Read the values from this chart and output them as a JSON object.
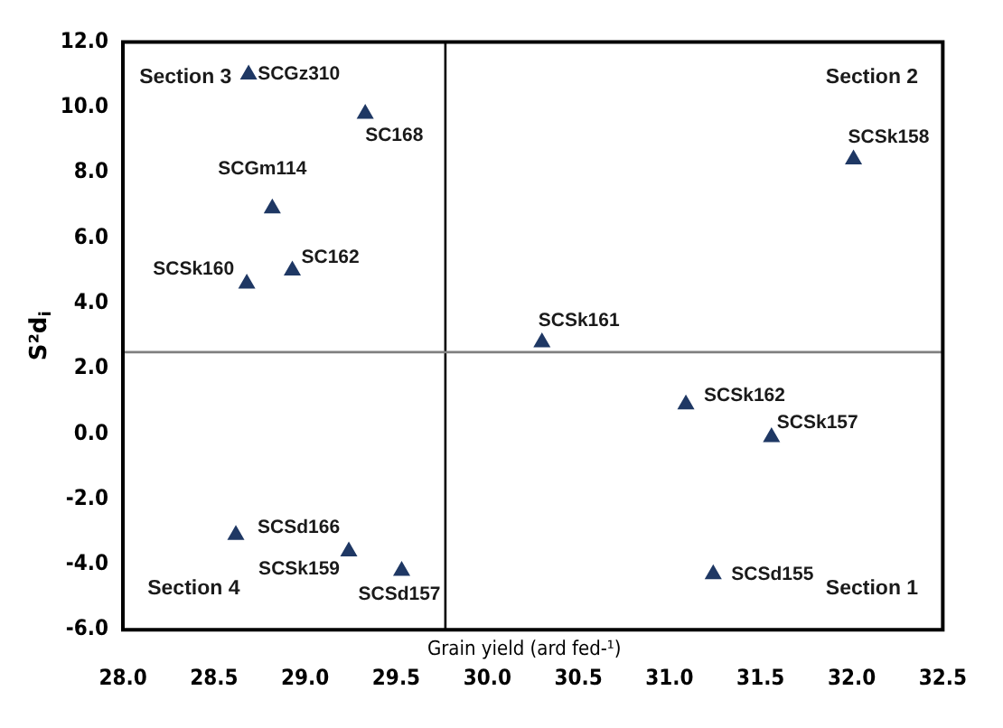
{
  "chart_data": {
    "type": "scatter",
    "xlabel": "Grain yield (ard fed-¹)",
    "ylabel": "S²d$_{i}$",
    "x": [
      28.69,
      29.33,
      28.82,
      28.93,
      28.68,
      32.01,
      30.3,
      31.09,
      31.56,
      31.24,
      28.62,
      29.24,
      29.53
    ],
    "series": [
      {
        "color": "#1f3864",
        "values": [
          11.0,
          9.8,
          6.9,
          5.0,
          4.6,
          8.4,
          2.8,
          0.9,
          -0.1,
          -4.3,
          -3.1,
          -3.6,
          -4.2
        ]
      }
    ],
    "marker": "triangle",
    "legend": false,
    "grid": false,
    "xlim": [
      28,
      32.5
    ],
    "ylim": [
      -6,
      12
    ],
    "xticks": [
      {
        "value": 28,
        "label": "28.0"
      },
      {
        "value": 28.5,
        "label": "28.5"
      },
      {
        "value": 29,
        "label": "29.0"
      },
      {
        "value": 29.5,
        "label": "29.5"
      },
      {
        "value": 30,
        "label": "30.0"
      },
      {
        "value": 30.5,
        "label": "30.5"
      },
      {
        "value": 31,
        "label": "31.0"
      },
      {
        "value": 31.5,
        "label": "31.5"
      },
      {
        "value": 32,
        "label": "32.0"
      },
      {
        "value": 32.5,
        "label": "32.5"
      }
    ],
    "yticks": [
      {
        "value": -6,
        "label": "-6.0"
      },
      {
        "value": -4,
        "label": "-4.0"
      },
      {
        "value": -2,
        "label": "-2.0"
      },
      {
        "value": 0,
        "label": "0.0"
      },
      {
        "value": 2,
        "label": "2.0"
      },
      {
        "value": 4,
        "label": "4.0"
      },
      {
        "value": 6,
        "label": "6.0"
      },
      {
        "value": 8,
        "label": "8.0"
      },
      {
        "value": 10,
        "label": "10.0"
      },
      {
        "value": 12,
        "label": "12.0"
      }
    ],
    "ref_lines": [
      {
        "axis": "x",
        "value": 29.77,
        "color": "#000000"
      },
      {
        "axis": "y",
        "value": 2.5,
        "color": "#808080"
      }
    ],
    "annotations": [
      {
        "text": "SCGz310",
        "x": 28.69,
        "y": 11.0
      },
      {
        "text": "SC168",
        "x": 29.33,
        "y": 9.8
      },
      {
        "text": "SCGm114",
        "x": 28.82,
        "y": 6.9
      },
      {
        "text": "SC162",
        "x": 28.93,
        "y": 5.0
      },
      {
        "text": "SCSk160",
        "x": 28.68,
        "y": 4.6
      },
      {
        "text": "SCSk158",
        "x": 32.01,
        "y": 8.4
      },
      {
        "text": "SCSk161",
        "x": 30.3,
        "y": 2.8
      },
      {
        "text": "SCSk162",
        "x": 31.09,
        "y": 0.9
      },
      {
        "text": "SCSk157",
        "x": 31.56,
        "y": -0.1
      },
      {
        "text": "SCSd155",
        "x": 31.24,
        "y": -4.3
      },
      {
        "text": "SCSd166",
        "x": 28.62,
        "y": -3.1
      },
      {
        "text": "SCSk159",
        "x": 29.24,
        "y": -3.6
      },
      {
        "text": "SCSd157",
        "x": 29.53,
        "y": -4.2
      },
      "Section 3",
      "Section 2",
      "Section 4",
      "Section 1"
    ]
  }
}
